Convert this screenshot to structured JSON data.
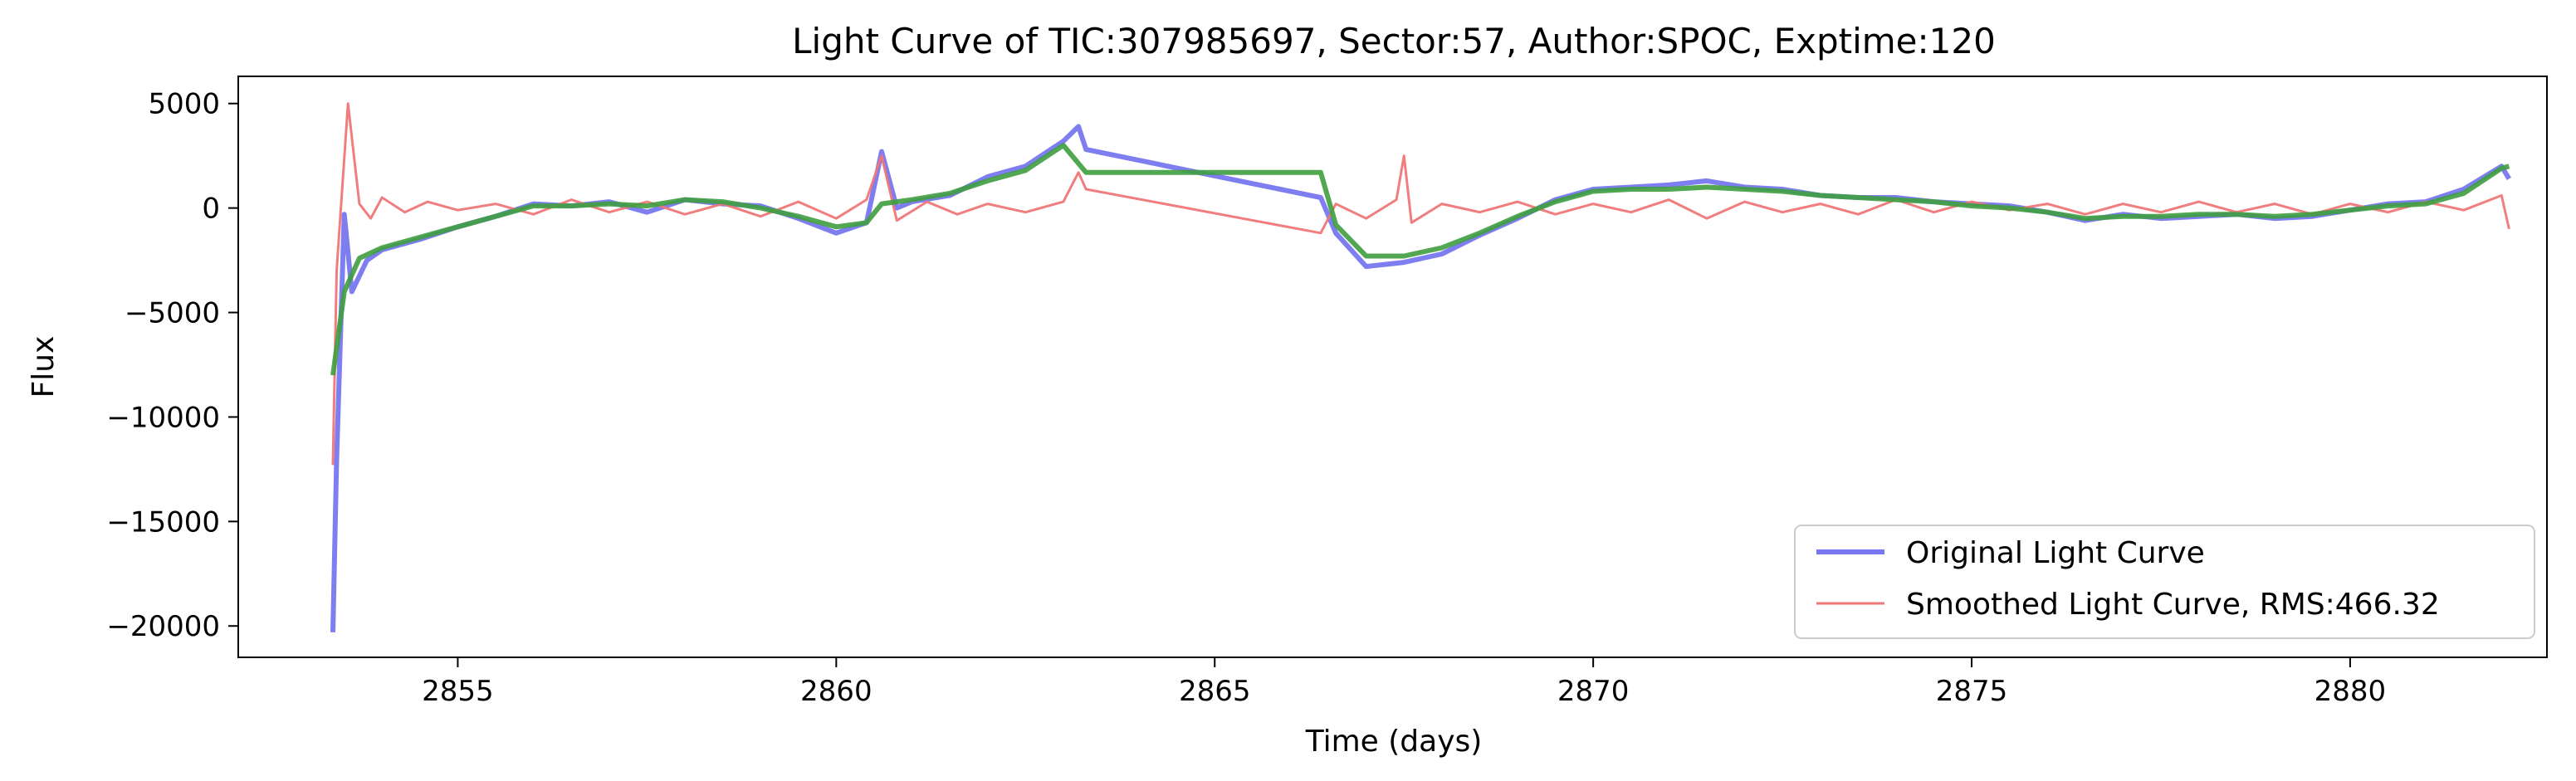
{
  "chart_data": {
    "type": "line",
    "title": "Light Curve of TIC:307985697, Sector:57, Author:SPOC, Exptime:120",
    "xlabel": "Time (days)",
    "ylabel": "Flux",
    "xlim": [
      2852.1,
      2882.6
    ],
    "ylim": [
      -21500,
      6300
    ],
    "x_ticks": [
      2855,
      2860,
      2865,
      2870,
      2875,
      2880
    ],
    "y_ticks": [
      5000,
      0,
      -5000,
      -10000,
      -15000,
      -20000
    ],
    "x_tick_labels": [
      "2855",
      "2860",
      "2865",
      "2870",
      "2875",
      "2880"
    ],
    "y_tick_labels": [
      "5000",
      "0",
      "−5000",
      "−10000",
      "−15000",
      "−20000"
    ],
    "grid": false,
    "legend_position": "lower-right",
    "series": [
      {
        "name": "Original Light Curve",
        "color": "#7777f0",
        "points": [
          [
            2853.35,
            -20300
          ],
          [
            2853.4,
            -12000
          ],
          [
            2853.5,
            -300
          ],
          [
            2853.6,
            -4000
          ],
          [
            2853.8,
            -2500
          ],
          [
            2854.0,
            -2000
          ],
          [
            2854.5,
            -1500
          ],
          [
            2855.0,
            -900
          ],
          [
            2855.5,
            -400
          ],
          [
            2856.0,
            200
          ],
          [
            2856.5,
            100
          ],
          [
            2857.0,
            300
          ],
          [
            2857.5,
            -200
          ],
          [
            2858.0,
            400
          ],
          [
            2858.5,
            200
          ],
          [
            2859.0,
            100
          ],
          [
            2859.5,
            -500
          ],
          [
            2860.0,
            -1200
          ],
          [
            2860.4,
            -700
          ],
          [
            2860.6,
            2700
          ],
          [
            2860.8,
            0
          ],
          [
            2861.0,
            300
          ],
          [
            2861.5,
            600
          ],
          [
            2862.0,
            1500
          ],
          [
            2862.5,
            2000
          ],
          [
            2863.0,
            3200
          ],
          [
            2863.2,
            3900
          ],
          [
            2863.3,
            2800
          ],
          [
            2866.4,
            500
          ],
          [
            2866.6,
            -1200
          ],
          [
            2867.0,
            -2800
          ],
          [
            2867.5,
            -2600
          ],
          [
            2868.0,
            -2200
          ],
          [
            2868.5,
            -1300
          ],
          [
            2869.0,
            -500
          ],
          [
            2869.5,
            400
          ],
          [
            2870.0,
            900
          ],
          [
            2870.5,
            1000
          ],
          [
            2871.0,
            1100
          ],
          [
            2871.5,
            1300
          ],
          [
            2872.0,
            1000
          ],
          [
            2872.5,
            900
          ],
          [
            2873.0,
            600
          ],
          [
            2873.5,
            500
          ],
          [
            2874.0,
            500
          ],
          [
            2874.5,
            300
          ],
          [
            2875.0,
            200
          ],
          [
            2875.5,
            100
          ],
          [
            2876.0,
            -200
          ],
          [
            2876.5,
            -600
          ],
          [
            2877.0,
            -300
          ],
          [
            2877.5,
            -500
          ],
          [
            2878.0,
            -400
          ],
          [
            2878.5,
            -300
          ],
          [
            2879.0,
            -500
          ],
          [
            2879.5,
            -400
          ],
          [
            2880.0,
            -100
          ],
          [
            2880.5,
            200
          ],
          [
            2881.0,
            300
          ],
          [
            2881.5,
            900
          ],
          [
            2882.0,
            2000
          ],
          [
            2882.1,
            1400
          ]
        ]
      },
      {
        "name": "Smoothed Light Curve, RMS:466.32",
        "color": "#f07777",
        "points": [
          [
            2853.35,
            -12300
          ],
          [
            2853.4,
            -3000
          ],
          [
            2853.55,
            5000
          ],
          [
            2853.7,
            200
          ],
          [
            2853.85,
            -500
          ],
          [
            2854.0,
            500
          ],
          [
            2854.3,
            -200
          ],
          [
            2854.6,
            300
          ],
          [
            2855.0,
            -100
          ],
          [
            2855.5,
            200
          ],
          [
            2856.0,
            -300
          ],
          [
            2856.5,
            400
          ],
          [
            2857.0,
            -200
          ],
          [
            2857.5,
            300
          ],
          [
            2858.0,
            -300
          ],
          [
            2858.5,
            200
          ],
          [
            2859.0,
            -400
          ],
          [
            2859.5,
            300
          ],
          [
            2860.0,
            -500
          ],
          [
            2860.4,
            400
          ],
          [
            2860.6,
            2500
          ],
          [
            2860.8,
            -600
          ],
          [
            2861.2,
            300
          ],
          [
            2861.6,
            -300
          ],
          [
            2862.0,
            200
          ],
          [
            2862.5,
            -200
          ],
          [
            2863.0,
            300
          ],
          [
            2863.2,
            1700
          ],
          [
            2863.3,
            900
          ],
          [
            2866.4,
            -1200
          ],
          [
            2866.6,
            200
          ],
          [
            2867.0,
            -500
          ],
          [
            2867.4,
            400
          ],
          [
            2867.5,
            2500
          ],
          [
            2867.6,
            -700
          ],
          [
            2868.0,
            200
          ],
          [
            2868.5,
            -200
          ],
          [
            2869.0,
            300
          ],
          [
            2869.5,
            -300
          ],
          [
            2870.0,
            200
          ],
          [
            2870.5,
            -200
          ],
          [
            2871.0,
            400
          ],
          [
            2871.5,
            -500
          ],
          [
            2872.0,
            300
          ],
          [
            2872.5,
            -200
          ],
          [
            2873.0,
            200
          ],
          [
            2873.5,
            -300
          ],
          [
            2874.0,
            400
          ],
          [
            2874.5,
            -200
          ],
          [
            2875.0,
            300
          ],
          [
            2875.5,
            -100
          ],
          [
            2876.0,
            200
          ],
          [
            2876.5,
            -300
          ],
          [
            2877.0,
            200
          ],
          [
            2877.5,
            -200
          ],
          [
            2878.0,
            300
          ],
          [
            2878.5,
            -200
          ],
          [
            2879.0,
            200
          ],
          [
            2879.5,
            -300
          ],
          [
            2880.0,
            200
          ],
          [
            2880.5,
            -200
          ],
          [
            2881.0,
            300
          ],
          [
            2881.5,
            -100
          ],
          [
            2882.0,
            600
          ],
          [
            2882.1,
            -1000
          ]
        ]
      },
      {
        "name": "",
        "color": "#3f9f3f",
        "points": [
          [
            2853.35,
            -8000
          ],
          [
            2853.5,
            -4000
          ],
          [
            2853.7,
            -2400
          ],
          [
            2854.0,
            -1900
          ],
          [
            2854.5,
            -1400
          ],
          [
            2855.0,
            -900
          ],
          [
            2855.5,
            -400
          ],
          [
            2856.0,
            100
          ],
          [
            2856.5,
            100
          ],
          [
            2857.0,
            200
          ],
          [
            2857.5,
            100
          ],
          [
            2858.0,
            400
          ],
          [
            2858.5,
            300
          ],
          [
            2859.0,
            0
          ],
          [
            2859.5,
            -400
          ],
          [
            2860.0,
            -900
          ],
          [
            2860.4,
            -700
          ],
          [
            2860.6,
            200
          ],
          [
            2861.0,
            400
          ],
          [
            2861.5,
            700
          ],
          [
            2862.0,
            1300
          ],
          [
            2862.5,
            1800
          ],
          [
            2863.0,
            3000
          ],
          [
            2863.3,
            1700
          ],
          [
            2866.4,
            1700
          ],
          [
            2866.6,
            -800
          ],
          [
            2867.0,
            -2300
          ],
          [
            2867.5,
            -2300
          ],
          [
            2868.0,
            -1900
          ],
          [
            2868.5,
            -1200
          ],
          [
            2869.0,
            -400
          ],
          [
            2869.5,
            300
          ],
          [
            2870.0,
            800
          ],
          [
            2870.5,
            900
          ],
          [
            2871.0,
            900
          ],
          [
            2871.5,
            1000
          ],
          [
            2872.0,
            900
          ],
          [
            2872.5,
            800
          ],
          [
            2873.0,
            600
          ],
          [
            2873.5,
            500
          ],
          [
            2874.0,
            400
          ],
          [
            2874.5,
            300
          ],
          [
            2875.0,
            100
          ],
          [
            2875.5,
            0
          ],
          [
            2876.0,
            -200
          ],
          [
            2876.5,
            -500
          ],
          [
            2877.0,
            -400
          ],
          [
            2877.5,
            -400
          ],
          [
            2878.0,
            -300
          ],
          [
            2878.5,
            -300
          ],
          [
            2879.0,
            -400
          ],
          [
            2879.5,
            -300
          ],
          [
            2880.0,
            -100
          ],
          [
            2880.5,
            100
          ],
          [
            2881.0,
            200
          ],
          [
            2881.5,
            700
          ],
          [
            2882.0,
            1900
          ],
          [
            2882.1,
            2000
          ]
        ]
      }
    ]
  }
}
